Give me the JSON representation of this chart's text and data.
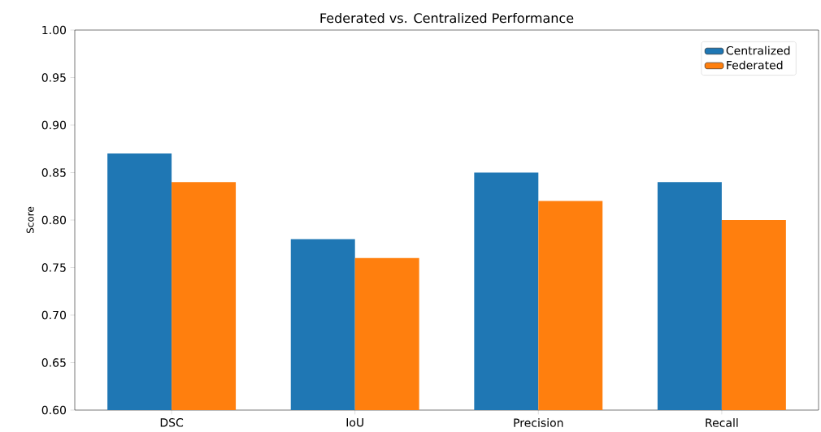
{
  "chart_data": {
    "type": "bar",
    "title": "Federated vs. Centralized Performance",
    "ylabel": "Score",
    "categories": [
      "DSC",
      "IoU",
      "Precision",
      "Recall"
    ],
    "series": [
      {
        "name": "Centralized",
        "color": "#1f77b4",
        "values": [
          0.87,
          0.78,
          0.85,
          0.84
        ]
      },
      {
        "name": "Federated",
        "color": "#ff7f0e",
        "values": [
          0.84,
          0.76,
          0.82,
          0.8
        ]
      }
    ],
    "ylim": [
      0.6,
      1.0
    ],
    "yticks": [
      {
        "value": 0.6,
        "label": "0.60"
      },
      {
        "value": 0.65,
        "label": "0.65"
      },
      {
        "value": 0.7,
        "label": "0.70"
      },
      {
        "value": 0.75,
        "label": "0.75"
      },
      {
        "value": 0.8,
        "label": "0.80"
      },
      {
        "value": 0.85,
        "label": "0.85"
      },
      {
        "value": 0.9,
        "label": "0.90"
      },
      {
        "value": 0.95,
        "label": "0.95"
      },
      {
        "value": 1.0,
        "label": "1.00"
      }
    ],
    "legend": "top right",
    "grid": false
  }
}
